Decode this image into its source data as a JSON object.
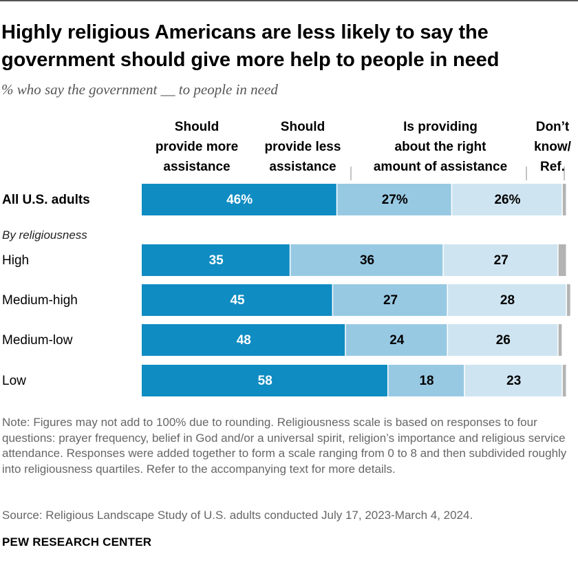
{
  "title": "Highly religious Americans are less likely to say the government should give more help to people in need",
  "subtitle": "% who say the government __ to people in need",
  "note": "Note: Figures may not add to 100% due to rounding. Religiousness scale is based on responses to four questions: prayer frequency, belief in God and/or a universal spirit, religion’s importance and religious service attendance. Responses were added together to form a scale ranging from 0 to 8 and then subdivided roughly into religiousness quartiles. Refer to the accompanying text for more details.",
  "source": "Source: Religious Landscape Study of U.S. adults conducted July 17, 2023-March 4, 2024.",
  "brand": "PEW RESEARCH CENTER",
  "colors": {
    "more": "#0f8cc2",
    "less": "#98c9e3",
    "right": "#cfe4f1",
    "dk": "#b3b3b3"
  },
  "chart_data": {
    "type": "bar",
    "orientation": "horizontal",
    "stacked": true,
    "title": "Highly religious Americans are less likely to say the government should give more help to people in need",
    "series": [
      {
        "name": "Should provide more assistance",
        "label_lines": [
          "Should",
          "provide more",
          "assistance"
        ],
        "values": [
          46,
          35,
          45,
          48,
          58
        ]
      },
      {
        "name": "Should provide less assistance",
        "label_lines": [
          "Should",
          "provide less",
          "assistance"
        ],
        "values": [
          27,
          36,
          27,
          24,
          18
        ]
      },
      {
        "name": "Is providing about the right amount of assistance",
        "label_lines": [
          "Is providing",
          "about the right",
          "amount of assistance"
        ],
        "values": [
          26,
          27,
          28,
          26,
          23
        ]
      },
      {
        "name": "Don’t know/ Ref.",
        "label_lines": [
          "Don’t",
          "know/",
          "Ref."
        ],
        "values": [
          1,
          2,
          1,
          1,
          1
        ]
      }
    ],
    "categories": [
      "All U.S. adults",
      "High",
      "Medium-high",
      "Medium-low",
      "Low"
    ],
    "value_labels": [
      [
        "46%",
        "27%",
        "26%"
      ],
      [
        "35",
        "36",
        "27"
      ],
      [
        "45",
        "27",
        "28"
      ],
      [
        "48",
        "24",
        "26"
      ],
      [
        "58",
        "18",
        "23"
      ]
    ],
    "group_label": "By religiousness",
    "xlim": [
      0,
      100
    ]
  }
}
